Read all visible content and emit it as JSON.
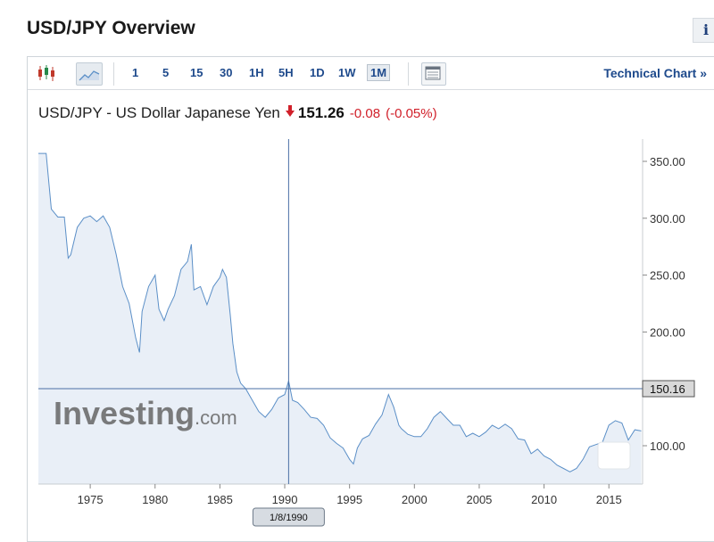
{
  "page": {
    "title": "USD/JPY Overview",
    "info_label": "i"
  },
  "toolbar": {
    "timeframes": [
      "1",
      "5",
      "15",
      "30",
      "1H",
      "5H",
      "1D",
      "1W",
      "1M"
    ],
    "active_timeframe": "1M",
    "technical_chart_label": "Technical Chart",
    "technical_chart_chevron": "»"
  },
  "instrument": {
    "name": "USD/JPY - US Dollar Japanese Yen",
    "price": "151.26",
    "change": "-0.08",
    "change_pct": "(-0.05%)",
    "direction": "down"
  },
  "chart_data": {
    "type": "area",
    "title": "",
    "xlabel": "",
    "ylabel": "",
    "x": [
      1971.0,
      1971.6,
      1972.0,
      1972.5,
      1973.0,
      1973.3,
      1973.5,
      1974.0,
      1974.5,
      1975.0,
      1975.5,
      1976.0,
      1976.5,
      1977.0,
      1977.5,
      1978.0,
      1978.5,
      1978.8,
      1979.0,
      1979.5,
      1980.0,
      1980.3,
      1980.7,
      1981.0,
      1981.5,
      1982.0,
      1982.5,
      1982.8,
      1983.0,
      1983.5,
      1984.0,
      1984.5,
      1985.0,
      1985.2,
      1985.5,
      1985.8,
      1986.0,
      1986.3,
      1986.6,
      1987.0,
      1987.5,
      1988.0,
      1988.5,
      1989.0,
      1989.5,
      1990.0,
      1990.3,
      1990.6,
      1991.0,
      1991.5,
      1992.0,
      1992.5,
      1993.0,
      1993.5,
      1994.0,
      1994.5,
      1995.0,
      1995.3,
      1995.6,
      1996.0,
      1996.5,
      1997.0,
      1997.5,
      1998.0,
      1998.4,
      1998.8,
      1999.0,
      1999.5,
      2000.0,
      2000.5,
      2001.0,
      2001.5,
      2002.0,
      2002.5,
      2003.0,
      2003.5,
      2004.0,
      2004.5,
      2005.0,
      2005.5,
      2006.0,
      2006.5,
      2007.0,
      2007.5,
      2008.0,
      2008.5,
      2009.0,
      2009.5,
      2010.0,
      2010.5,
      2011.0,
      2011.5,
      2012.0,
      2012.5,
      2013.0,
      2013.5,
      2014.0,
      2014.5,
      2015.0,
      2015.5,
      2016.0,
      2016.5,
      2017.0,
      2017.5
    ],
    "y": [
      357,
      357,
      308,
      301,
      301,
      265,
      268,
      292,
      300,
      302,
      297,
      302,
      292,
      268,
      240,
      225,
      195,
      182,
      218,
      240,
      250,
      220,
      210,
      220,
      232,
      255,
      262,
      277,
      237,
      240,
      224,
      240,
      248,
      255,
      248,
      215,
      190,
      165,
      155,
      150,
      140,
      130,
      125,
      132,
      142,
      145,
      157,
      140,
      138,
      132,
      125,
      124,
      118,
      107,
      102,
      98,
      88,
      84,
      98,
      106,
      109,
      119,
      127,
      145,
      134,
      118,
      115,
      110,
      108,
      108,
      115,
      125,
      130,
      124,
      118,
      118,
      108,
      111,
      108,
      112,
      118,
      115,
      119,
      115,
      106,
      105,
      93,
      97,
      91,
      88,
      83,
      80,
      77,
      80,
      88,
      99,
      101,
      103,
      118,
      122,
      120,
      105,
      114,
      113
    ],
    "ylim": [
      60,
      370
    ],
    "y_ticks": [
      "350.00",
      "300.00",
      "250.00",
      "200.00",
      "100.00"
    ],
    "x_ticks": [
      "1975",
      "1980",
      "1985",
      "1990",
      "1995",
      "2000",
      "2005",
      "2010",
      "2015"
    ],
    "crosshair": {
      "x_label": "1/8/1990",
      "y_label": "150.16",
      "x_value": 1990.3,
      "y_value": 150.16
    },
    "watermark": "Investing.com",
    "line_color": "#5b8fc7",
    "fill_color": "#e9eff7"
  }
}
